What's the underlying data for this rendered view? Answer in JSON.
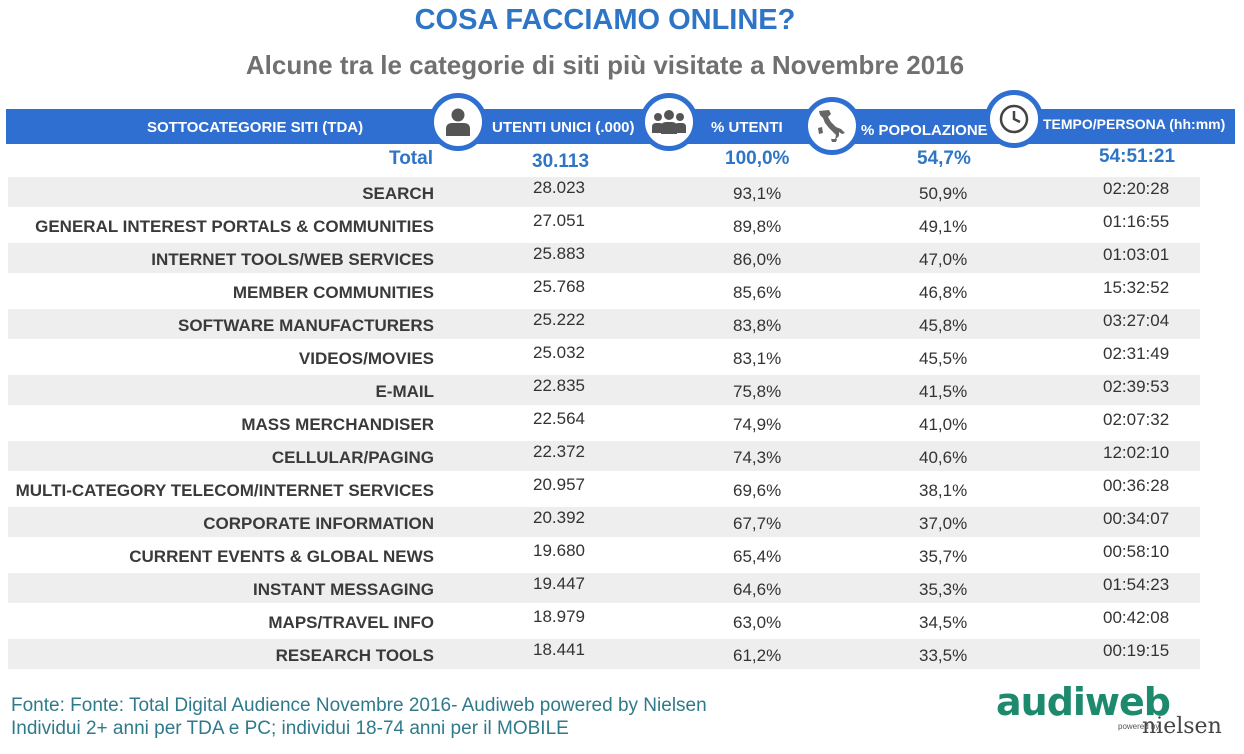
{
  "title": "COSA FACCIAMO ONLINE?",
  "subtitle": "Alcune tra le categorie di siti più visitate a Novembre 2016",
  "header": {
    "category": "SOTTOCATEGORIE SITI  (TDA)",
    "users": "UTENTI UNICI (.000)",
    "pct_users": "% UTENTI",
    "pct_pop": "% POPOLAZIONE",
    "time": "TEMPO/PERSONA (hh:mm)"
  },
  "total": {
    "label": "Total",
    "users": "30.113",
    "pct_users": "100,0%",
    "pct_pop": "54,7%",
    "time": "54:51:21"
  },
  "rows": [
    {
      "category": "SEARCH",
      "users": "28.023",
      "pct_users": "93,1%",
      "pct_pop": "50,9%",
      "time": "02:20:28"
    },
    {
      "category": "GENERAL INTEREST PORTALS & COMMUNITIES",
      "users": "27.051",
      "pct_users": "89,8%",
      "pct_pop": "49,1%",
      "time": "01:16:55"
    },
    {
      "category": "INTERNET TOOLS/WEB SERVICES",
      "users": "25.883",
      "pct_users": "86,0%",
      "pct_pop": "47,0%",
      "time": "01:03:01"
    },
    {
      "category": "MEMBER COMMUNITIES",
      "users": "25.768",
      "pct_users": "85,6%",
      "pct_pop": "46,8%",
      "time": "15:32:52"
    },
    {
      "category": "SOFTWARE MANUFACTURERS",
      "users": "25.222",
      "pct_users": "83,8%",
      "pct_pop": "45,8%",
      "time": "03:27:04"
    },
    {
      "category": "VIDEOS/MOVIES",
      "users": "25.032",
      "pct_users": "83,1%",
      "pct_pop": "45,5%",
      "time": "02:31:49"
    },
    {
      "category": "E-MAIL",
      "users": "22.835",
      "pct_users": "75,8%",
      "pct_pop": "41,5%",
      "time": "02:39:53"
    },
    {
      "category": "MASS MERCHANDISER",
      "users": "22.564",
      "pct_users": "74,9%",
      "pct_pop": "41,0%",
      "time": "02:07:32"
    },
    {
      "category": "CELLULAR/PAGING",
      "users": "22.372",
      "pct_users": "74,3%",
      "pct_pop": "40,6%",
      "time": "12:02:10"
    },
    {
      "category": "MULTI-CATEGORY TELECOM/INTERNET SERVICES",
      "users": "20.957",
      "pct_users": "69,6%",
      "pct_pop": "38,1%",
      "time": "00:36:28"
    },
    {
      "category": "CORPORATE INFORMATION",
      "users": "20.392",
      "pct_users": "67,7%",
      "pct_pop": "37,0%",
      "time": "00:34:07"
    },
    {
      "category": "CURRENT EVENTS & GLOBAL NEWS",
      "users": "19.680",
      "pct_users": "65,4%",
      "pct_pop": "35,7%",
      "time": "00:58:10"
    },
    {
      "category": "INSTANT MESSAGING",
      "users": "19.447",
      "pct_users": "64,6%",
      "pct_pop": "35,3%",
      "time": "01:54:23"
    },
    {
      "category": "MAPS/TRAVEL INFO",
      "users": "18.979",
      "pct_users": "63,0%",
      "pct_pop": "34,5%",
      "time": "00:42:08"
    },
    {
      "category": "RESEARCH TOOLS",
      "users": "18.441",
      "pct_users": "61,2%",
      "pct_pop": "33,5%",
      "time": "00:19:15"
    }
  ],
  "footer": {
    "line1": "Fonte: Fonte: Total Digital Audience Novembre 2016- Audiweb powered by Nielsen",
    "line2": "Individui 2+ anni per TDA e PC; individui 18-74 anni per il MOBILE"
  },
  "logo": {
    "brand": "audiweb",
    "powered": "powered by",
    "partner": "nielsen"
  },
  "icons": [
    "person-icon",
    "group-icon",
    "italy-map-icon",
    "clock-icon"
  ],
  "colors": {
    "accent": "#2e6fd1",
    "title": "#2e75c6",
    "footer": "#2f7a8a",
    "row_alt": "#eeeeee"
  }
}
